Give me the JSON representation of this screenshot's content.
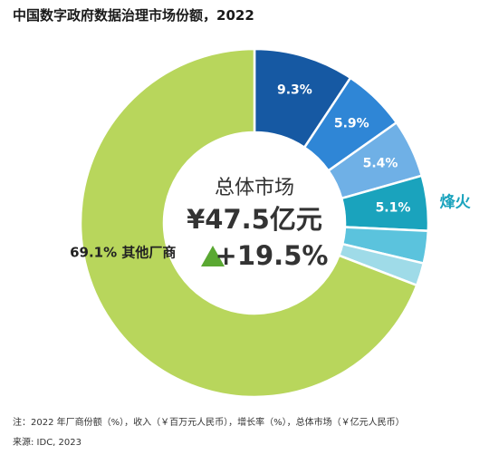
{
  "title": "中国数字政府数据治理市场份额，2022",
  "chart_data": {
    "type": "pie",
    "variant": "donut",
    "center": {
      "label": "总体市场",
      "total": "¥47.5亿元",
      "growth": "+19.5%",
      "growth_color": "#5aa832"
    },
    "slices": [
      {
        "value": 9.3,
        "label": "9.3%",
        "color": "#1659a3"
      },
      {
        "value": 5.9,
        "label": "5.9%",
        "color": "#2f86d6"
      },
      {
        "value": 5.4,
        "label": "5.4%",
        "color": "#6fb0e6"
      },
      {
        "value": 5.1,
        "label": "5.1%",
        "color": "#1aa3bd",
        "callout": "烽火",
        "callout_color": "#1aa3bd"
      },
      {
        "value": 3.0,
        "label": "",
        "color": "#5bc3dd"
      },
      {
        "value": 2.1,
        "label": "",
        "color": "#9fdbe8"
      },
      {
        "value": 69.1,
        "label": "69.1%",
        "color": "#b8d65c",
        "name": "其他厂商"
      }
    ]
  },
  "note": "注：2022 年厂商份额（%），收入（￥百万元人民币），增长率（%），总体市场（￥亿元人民币）",
  "source": "来源: IDC, 2023"
}
